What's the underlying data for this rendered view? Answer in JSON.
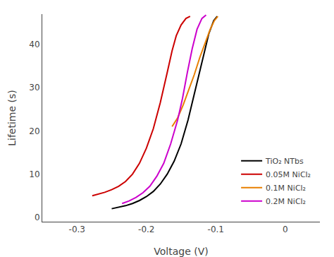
{
  "chart_data": {
    "type": "line",
    "xlabel": "Voltage (V)",
    "ylabel": "Lifetime (s)",
    "xlim": [
      -0.35,
      0.05
    ],
    "ylim": [
      -1,
      47
    ],
    "xticks": [
      -0.3,
      -0.2,
      -0.1,
      0.0
    ],
    "yticks": [
      0,
      10,
      20,
      30,
      40
    ],
    "grid": false,
    "legend": "lower right",
    "series": [
      {
        "name": "TiO₂ NTbs",
        "color": "#000000",
        "x": [
          -0.25,
          -0.24,
          -0.23,
          -0.22,
          -0.21,
          -0.2,
          -0.19,
          -0.18,
          -0.17,
          -0.16,
          -0.15,
          -0.14,
          -0.13,
          -0.12,
          -0.11,
          -0.103,
          -0.098
        ],
        "values": [
          2.0,
          2.3,
          2.7,
          3.2,
          3.9,
          4.8,
          6.0,
          7.7,
          10.0,
          13.0,
          17.0,
          22.5,
          29.0,
          36.0,
          42.5,
          45.5,
          46.5
        ]
      },
      {
        "name": "0.05M NiCl₂",
        "color": "#cc0000",
        "x": [
          -0.278,
          -0.27,
          -0.26,
          -0.25,
          -0.24,
          -0.23,
          -0.22,
          -0.21,
          -0.2,
          -0.19,
          -0.18,
          -0.17,
          -0.163,
          -0.157,
          -0.15,
          -0.143,
          -0.137
        ],
        "values": [
          5.0,
          5.3,
          5.8,
          6.4,
          7.2,
          8.3,
          10.0,
          12.5,
          16.0,
          20.5,
          26.5,
          33.5,
          38.5,
          42.0,
          44.5,
          46.0,
          46.5
        ]
      },
      {
        "name": "0.1M NiCl₂",
        "color": "#e87f00",
        "x": [
          -0.163,
          -0.155,
          -0.147,
          -0.139,
          -0.131,
          -0.123,
          -0.115,
          -0.108,
          -0.102,
          -0.097
        ],
        "values": [
          21.0,
          23.0,
          26.0,
          29.5,
          33.0,
          37.0,
          40.5,
          43.5,
          45.5,
          46.5
        ]
      },
      {
        "name": "0.2M NiCl₂",
        "color": "#cc00cc",
        "x": [
          -0.235,
          -0.225,
          -0.215,
          -0.205,
          -0.195,
          -0.185,
          -0.175,
          -0.165,
          -0.155,
          -0.148,
          -0.141,
          -0.134,
          -0.127,
          -0.12,
          -0.114
        ],
        "values": [
          3.2,
          3.8,
          4.6,
          5.7,
          7.2,
          9.5,
          12.5,
          17.0,
          22.5,
          27.5,
          33.5,
          39.0,
          43.5,
          46.0,
          46.8
        ]
      }
    ]
  }
}
